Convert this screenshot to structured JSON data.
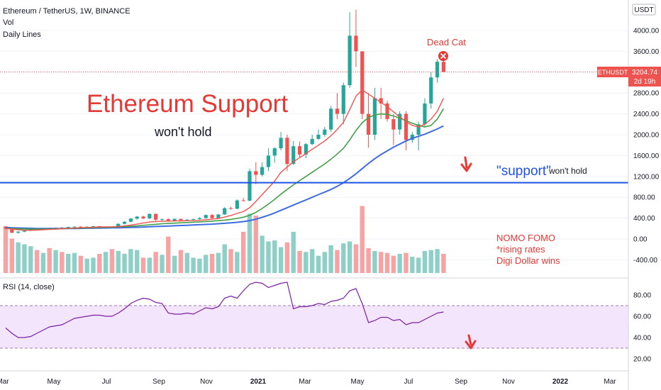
{
  "header": {
    "symbol_line": "Ethereum / TetherUS, 1W, BINANCE",
    "vol_label": "Vol",
    "daily_lines_label": "Daily Lines",
    "currency_badge": "USDT"
  },
  "price_tag": {
    "symbol": "ETHUSDT",
    "price": "3204.74",
    "countdown": "2d 19h"
  },
  "rsi": {
    "label": "RSI (14, close)",
    "ticks": [
      "80.00",
      "60.00",
      "40.00",
      "20.00"
    ],
    "band_upper": 70,
    "band_lower": 30
  },
  "annotations": {
    "headline": "Ethereum Support",
    "subline": "won't hold",
    "dead_cat": "Dead Cat",
    "support_quoted": "\"support\"",
    "support_wont_hold": "won't hold",
    "notes": [
      "NOMO FOMO",
      "*rising rates",
      "Digi Dollar wins"
    ]
  },
  "colors": {
    "up": "#26a69a",
    "down": "#ef5350",
    "support_line": "#1e53e5",
    "ma_fast": "#ef5350",
    "ma_mid": "#43a047",
    "ma_slow": "#3f6ce0",
    "rsi_line": "#7b1fa2",
    "rsi_band": "#f3e5fb",
    "annotation_red": "#e53935",
    "annotation_blue": "#1e53e5"
  },
  "chart_data": {
    "type": "candlestick",
    "price_ticks": [
      "4000.00",
      "3600.00",
      "3200.00",
      "2800.00",
      "2400.00",
      "2000.00",
      "1600.00",
      "1200.00",
      "800.00",
      "400.00",
      "0.00",
      "-400.00"
    ],
    "x_labels": [
      "Mar",
      "May",
      "Jul",
      "Sep",
      "Nov",
      "2021",
      "Mar",
      "May",
      "Jul",
      "Sep",
      "Nov",
      "2022",
      "Mar"
    ],
    "support_level": 1080,
    "candles": [
      [
        230,
        240,
        180,
        200
      ],
      [
        200,
        210,
        110,
        120
      ],
      [
        120,
        150,
        100,
        140
      ],
      [
        140,
        170,
        130,
        160
      ],
      [
        160,
        190,
        150,
        185
      ],
      [
        185,
        200,
        170,
        175
      ],
      [
        175,
        215,
        170,
        205
      ],
      [
        205,
        215,
        190,
        195
      ],
      [
        195,
        220,
        185,
        215
      ],
      [
        215,
        230,
        200,
        210
      ],
      [
        210,
        235,
        200,
        230
      ],
      [
        230,
        245,
        220,
        235
      ],
      [
        235,
        245,
        215,
        225
      ],
      [
        225,
        240,
        220,
        235
      ],
      [
        235,
        250,
        225,
        245
      ],
      [
        245,
        250,
        225,
        230
      ],
      [
        230,
        240,
        220,
        235
      ],
      [
        235,
        245,
        225,
        230
      ],
      [
        230,
        300,
        225,
        290
      ],
      [
        290,
        340,
        280,
        330
      ],
      [
        330,
        400,
        320,
        390
      ],
      [
        390,
        440,
        370,
        430
      ],
      [
        430,
        445,
        380,
        395
      ],
      [
        395,
        490,
        380,
        480
      ],
      [
        480,
        490,
        320,
        370
      ],
      [
        370,
        390,
        330,
        380
      ],
      [
        380,
        395,
        340,
        350
      ],
      [
        350,
        390,
        340,
        385
      ],
      [
        385,
        390,
        350,
        360
      ],
      [
        360,
        380,
        340,
        370
      ],
      [
        370,
        390,
        350,
        380
      ],
      [
        380,
        420,
        370,
        400
      ],
      [
        400,
        470,
        390,
        460
      ],
      [
        460,
        480,
        390,
        400
      ],
      [
        400,
        480,
        390,
        470
      ],
      [
        470,
        610,
        460,
        590
      ],
      [
        590,
        620,
        560,
        580
      ],
      [
        580,
        760,
        570,
        740
      ],
      [
        740,
        790,
        720,
        735
      ],
      [
        735,
        1350,
        720,
        1300
      ],
      [
        1300,
        1470,
        1050,
        1230
      ],
      [
        1230,
        1470,
        1200,
        1380
      ],
      [
        1380,
        1740,
        1300,
        1600
      ],
      [
        1600,
        1760,
        1460,
        1740
      ],
      [
        1740,
        2050,
        1700,
        1940
      ],
      [
        1940,
        2000,
        1300,
        1440
      ],
      [
        1440,
        1880,
        1420,
        1780
      ],
      [
        1780,
        1870,
        1560,
        1620
      ],
      [
        1620,
        1840,
        1550,
        1820
      ],
      [
        1820,
        2000,
        1800,
        1920
      ],
      [
        1920,
        2100,
        1900,
        2000
      ],
      [
        2000,
        2150,
        1960,
        2100
      ],
      [
        2100,
        2550,
        2050,
        2500
      ],
      [
        2500,
        2800,
        2300,
        2400
      ],
      [
        2400,
        3000,
        2200,
        2950
      ],
      [
        2950,
        4350,
        2900,
        3900
      ],
      [
        3900,
        4400,
        3300,
        3600
      ],
      [
        3600,
        3600,
        2300,
        2400
      ],
      [
        2400,
        2800,
        1750,
        2000
      ],
      [
        2000,
        2900,
        1900,
        2700
      ],
      [
        2700,
        2900,
        2300,
        2600
      ],
      [
        2600,
        2650,
        2250,
        2300
      ],
      [
        2300,
        2400,
        1800,
        2100
      ],
      [
        2100,
        2450,
        2000,
        2400
      ],
      [
        2400,
        2450,
        1700,
        1900
      ],
      [
        1900,
        2050,
        1850,
        2000
      ],
      [
        2000,
        2250,
        1700,
        2200
      ],
      [
        2200,
        2700,
        2150,
        2600
      ],
      [
        2600,
        3200,
        2500,
        3100
      ],
      [
        3100,
        3450,
        3000,
        3400
      ],
      [
        3400,
        3460,
        3200,
        3205
      ]
    ],
    "volume": [
      490,
      360,
      320,
      300,
      280,
      240,
      210,
      260,
      240,
      220,
      200,
      210,
      180,
      150,
      160,
      200,
      220,
      250,
      230,
      200,
      250,
      240,
      160,
      160,
      220,
      190,
      380,
      180,
      240,
      210,
      160,
      150,
      190,
      200,
      210,
      300,
      250,
      220,
      430,
      620,
      600,
      390,
      330,
      340,
      270,
      320,
      430,
      230,
      220,
      250,
      180,
      220,
      290,
      240,
      310,
      330,
      300,
      700,
      260,
      230,
      220,
      210,
      180,
      200,
      210,
      170,
      160,
      230,
      240,
      250,
      200
    ],
    "ma_fast": [
      200,
      190,
      175,
      168,
      168,
      170,
      175,
      182,
      188,
      195,
      202,
      210,
      216,
      220,
      225,
      230,
      232,
      233,
      238,
      250,
      265,
      285,
      305,
      325,
      335,
      340,
      342,
      345,
      347,
      350,
      353,
      358,
      368,
      380,
      392,
      420,
      450,
      490,
      525,
      600,
      720,
      850,
      980,
      1110,
      1280,
      1380,
      1480,
      1560,
      1640,
      1720,
      1800,
      1880,
      1980,
      2100,
      2240,
      2480,
      2740,
      2860,
      2780,
      2700,
      2620,
      2540,
      2440,
      2340,
      2250,
      2180,
      2150,
      2200,
      2300,
      2450,
      2700
    ],
    "ma_mid": [
      205,
      200,
      195,
      190,
      188,
      188,
      189,
      191,
      193,
      196,
      200,
      204,
      208,
      212,
      216,
      220,
      224,
      227,
      231,
      236,
      243,
      251,
      261,
      272,
      282,
      291,
      298,
      304,
      310,
      316,
      322,
      328,
      335,
      343,
      351,
      362,
      376,
      395,
      418,
      455,
      510,
      585,
      670,
      760,
      860,
      950,
      1040,
      1120,
      1200,
      1280,
      1360,
      1440,
      1530,
      1630,
      1740,
      1900,
      2080,
      2230,
      2330,
      2380,
      2400,
      2390,
      2360,
      2320,
      2270,
      2220,
      2180,
      2150,
      2180,
      2300,
      2500
    ],
    "ma_slow": [
      220,
      215,
      211,
      207,
      204,
      202,
      201,
      200,
      200,
      200,
      201,
      202,
      203,
      205,
      207,
      209,
      211,
      213,
      215,
      218,
      221,
      225,
      229,
      234,
      239,
      244,
      249,
      253,
      258,
      263,
      268,
      273,
      279,
      285,
      292,
      300,
      309,
      320,
      333,
      352,
      380,
      415,
      455,
      500,
      550,
      600,
      650,
      700,
      750,
      800,
      850,
      900,
      950,
      1010,
      1080,
      1160,
      1250,
      1350,
      1450,
      1540,
      1620,
      1690,
      1760,
      1820,
      1880,
      1930,
      1970,
      2010,
      2060,
      2110,
      2170
    ],
    "rsi": [
      49,
      44,
      40,
      40,
      41,
      44,
      47,
      50,
      51,
      52,
      55,
      58,
      59,
      60,
      61,
      61,
      60,
      60,
      63,
      67,
      72,
      75,
      77,
      76,
      73,
      72,
      63,
      62,
      62,
      63,
      62,
      65,
      68,
      67,
      69,
      77,
      79,
      77,
      84,
      90,
      92,
      91,
      87,
      89,
      91,
      92,
      67,
      69,
      69,
      70,
      72,
      71,
      74,
      75,
      77,
      84,
      86,
      72,
      54,
      56,
      59,
      59,
      56,
      57,
      52,
      54,
      54,
      57,
      60,
      63,
      64
    ]
  }
}
